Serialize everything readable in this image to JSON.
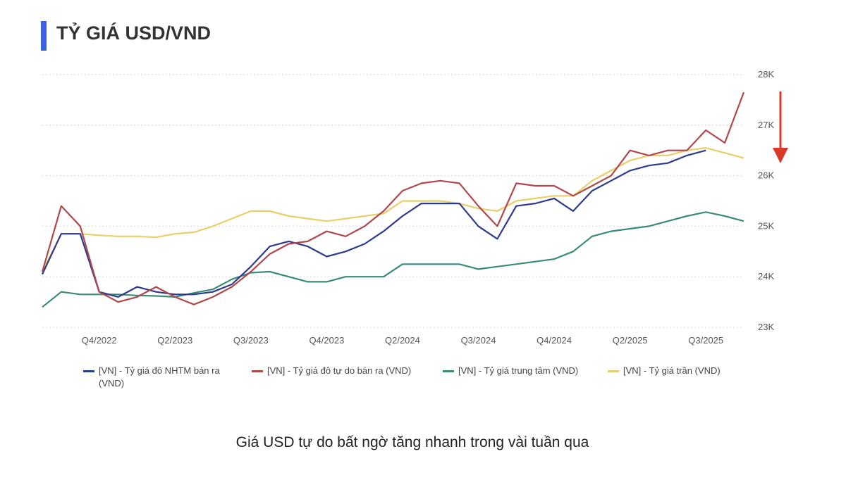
{
  "chart_data": {
    "type": "line",
    "title": "TỶ GIÁ USD/VND",
    "caption": "Giá USD tự do bất ngờ tăng nhanh trong vài tuần qua",
    "categories": [
      null,
      null,
      null,
      "Q4/2022",
      null,
      null,
      null,
      "Q2/2023",
      null,
      null,
      null,
      "Q3/2023",
      null,
      null,
      null,
      "Q4/2023",
      null,
      null,
      null,
      "Q2/2024",
      null,
      null,
      null,
      "Q3/2024",
      null,
      null,
      null,
      "Q4/2024",
      null,
      null,
      null,
      "Q2/2025",
      null,
      null,
      null,
      "Q3/2025",
      null,
      null
    ],
    "ylim": [
      23000,
      28000
    ],
    "yticks": [
      {
        "value": 23000,
        "label": "23K"
      },
      {
        "value": 24000,
        "label": "24K"
      },
      {
        "value": 25000,
        "label": "25K"
      },
      {
        "value": 26000,
        "label": "26K"
      },
      {
        "value": 27000,
        "label": "27K"
      },
      {
        "value": 28000,
        "label": "28K"
      }
    ],
    "grid": true,
    "legend": "bottom",
    "series": [
      {
        "name": "[VN] - Tỷ giá đô NHTM bán ra (VND)",
        "color": "#2e3a8c",
        "values": [
          24050,
          24850,
          24850,
          23700,
          23600,
          23800,
          23700,
          23650,
          23650,
          23700,
          23850,
          24200,
          24600,
          24700,
          24600,
          24400,
          24500,
          24650,
          24900,
          25200,
          25450,
          25450,
          25450,
          25000,
          24750,
          25400,
          25450,
          25550,
          25300,
          25700,
          25900,
          26100,
          26200,
          26250,
          26400,
          26500,
          null,
          null
        ]
      },
      {
        "name": "[VN] - Tỷ giá đô tự do bán ra (VND)",
        "color": "#b0474a",
        "values": [
          24100,
          25400,
          25000,
          23700,
          23500,
          23600,
          23800,
          23600,
          23450,
          23600,
          23800,
          24100,
          24450,
          24650,
          24700,
          24900,
          24800,
          25000,
          25300,
          25700,
          25850,
          25900,
          25850,
          25400,
          25000,
          25850,
          25800,
          25800,
          25600,
          25800,
          26000,
          26500,
          26400,
          26500,
          26500,
          26900,
          26650,
          27650
        ]
      },
      {
        "name": "[VN] - Tỷ giá trung tâm (VND)",
        "color": "#3a8a78",
        "values": [
          23400,
          23700,
          23650,
          23650,
          23650,
          23630,
          23620,
          23600,
          23680,
          23750,
          23950,
          24080,
          24100,
          24000,
          23900,
          23900,
          24000,
          24000,
          24000,
          24250,
          24250,
          24250,
          24250,
          24150,
          24200,
          24250,
          24300,
          24350,
          24500,
          24800,
          24900,
          24950,
          25000,
          25100,
          25200,
          25280,
          25200,
          25100
        ]
      },
      {
        "name": "[VN] - Tỷ giá trần (VND)",
        "color": "#e8cf6a",
        "values": [
          24100,
          24850,
          24850,
          24820,
          24800,
          24800,
          24780,
          24850,
          24880,
          25000,
          25150,
          25300,
          25300,
          25200,
          25150,
          25100,
          25150,
          25200,
          25250,
          25500,
          25500,
          25500,
          25450,
          25350,
          25300,
          25500,
          25550,
          25600,
          25600,
          25900,
          26100,
          26300,
          26400,
          26400,
          26500,
          26550,
          26450,
          26350
        ]
      }
    ]
  }
}
